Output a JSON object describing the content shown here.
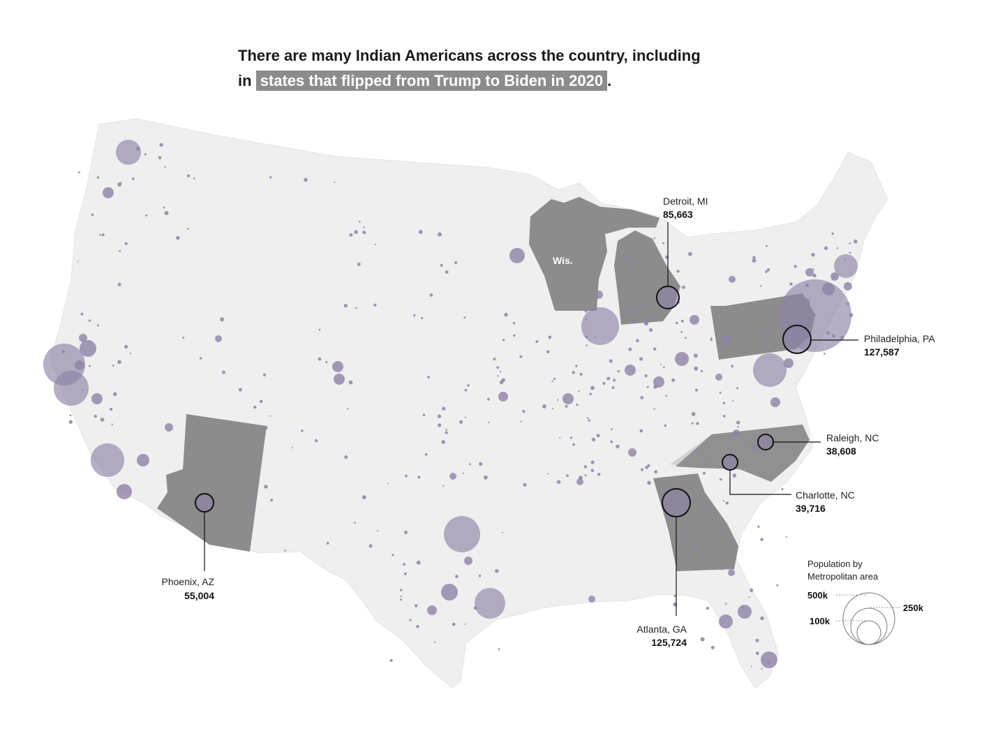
{
  "headline": {
    "part1": "There are many Indian Americans across the country, including",
    "part2": "in",
    "highlight": "states that flipped from Trump to Biden in 2020",
    "end": "."
  },
  "colors": {
    "land": "#efefef",
    "flipped_state": "#8c8c8c",
    "bubble": "#8e82a6",
    "highlight_bg": "#8c8c8c"
  },
  "map": {
    "state_labels": {
      "wisconsin": "Wis."
    },
    "flipped_states": [
      "Arizona",
      "Wisconsin",
      "Michigan",
      "Pennsylvania",
      "Georgia"
    ],
    "callouts": {
      "detroit": {
        "name": "Detroit, MI",
        "value": "85,663"
      },
      "philadelphia": {
        "name": "Philadelphia, PA",
        "value": "127,587"
      },
      "raleigh": {
        "name": "Raleigh, NC",
        "value": "38,608"
      },
      "charlotte": {
        "name": "Charlotte, NC",
        "value": "39,716"
      },
      "atlanta": {
        "name": "Atlanta, GA",
        "value": "125,724"
      },
      "phoenix": {
        "name": "Phoenix, AZ",
        "value": "55,004"
      }
    }
  },
  "legend": {
    "title1": "Population by",
    "title2": "Metropolitan area",
    "k500": "500k",
    "k250": "250k",
    "k100": "100k"
  }
}
